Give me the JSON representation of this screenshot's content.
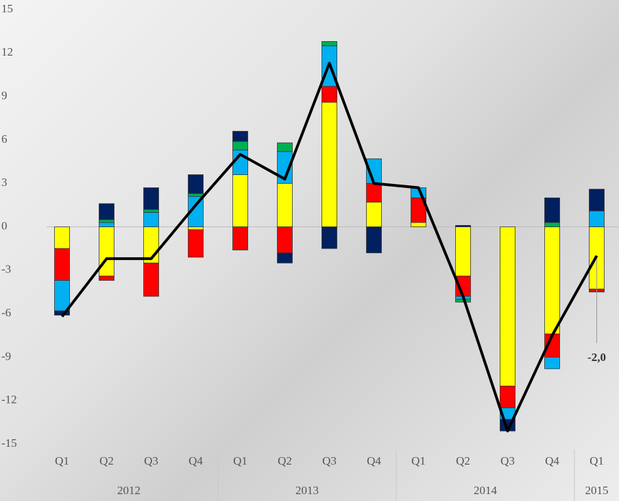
{
  "chart_data": {
    "type": "bar",
    "categories": [
      "Q1",
      "Q2",
      "Q3",
      "Q4",
      "Q1",
      "Q2",
      "Q3",
      "Q4",
      "Q1",
      "Q2",
      "Q3",
      "Q4",
      "Q1"
    ],
    "years": [
      "2012",
      null,
      null,
      null,
      "2013",
      null,
      null,
      null,
      "2014",
      null,
      null,
      null,
      "2015"
    ],
    "series": [
      {
        "color": "#ffff00",
        "values": [
          -1.5,
          -3.4,
          -2.5,
          -0.2,
          3.6,
          3.0,
          8.6,
          1.7,
          0.3,
          -3.4,
          -11.0,
          -7.4,
          -4.3
        ]
      },
      {
        "color": "#ff0000",
        "values": [
          -2.2,
          -0.3,
          -2.3,
          -1.9,
          -1.6,
          -1.8,
          1.1,
          1.3,
          1.7,
          -1.4,
          -1.5,
          -1.6,
          -0.2
        ]
      },
      {
        "color": "#00b0f0",
        "values": [
          -2.1,
          0.3,
          1.0,
          2.1,
          1.7,
          2.2,
          2.8,
          1.7,
          0.7,
          -0.2,
          -0.8,
          -0.8,
          1.1
        ]
      },
      {
        "color": "#00b050",
        "values": [
          0,
          0.2,
          0.2,
          0.2,
          0.6,
          0.6,
          0.3,
          0,
          0,
          -0.2,
          0,
          0.3,
          0
        ]
      },
      {
        "color": "#002060",
        "values": [
          -0.3,
          1.1,
          1.5,
          1.3,
          0.7,
          -0.7,
          -1.5,
          -1.8,
          0,
          0.1,
          -0.8,
          1.7,
          1.5
        ]
      }
    ],
    "line": {
      "type": "line",
      "color": "#000000",
      "values": [
        -6.2,
        -2.2,
        -2.2,
        1.5,
        5.0,
        3.3,
        11.3,
        3.0,
        2.7,
        -4.8,
        -14.1,
        -7.5,
        -2.0
      ],
      "value_labels": [
        null,
        null,
        null,
        null,
        null,
        null,
        null,
        null,
        null,
        null,
        null,
        null,
        "-2,0"
      ]
    },
    "ylim": [
      -15,
      15
    ],
    "yticks": [
      -15,
      -12,
      -9,
      -6,
      -3,
      0,
      3,
      6,
      9,
      12,
      15
    ]
  }
}
